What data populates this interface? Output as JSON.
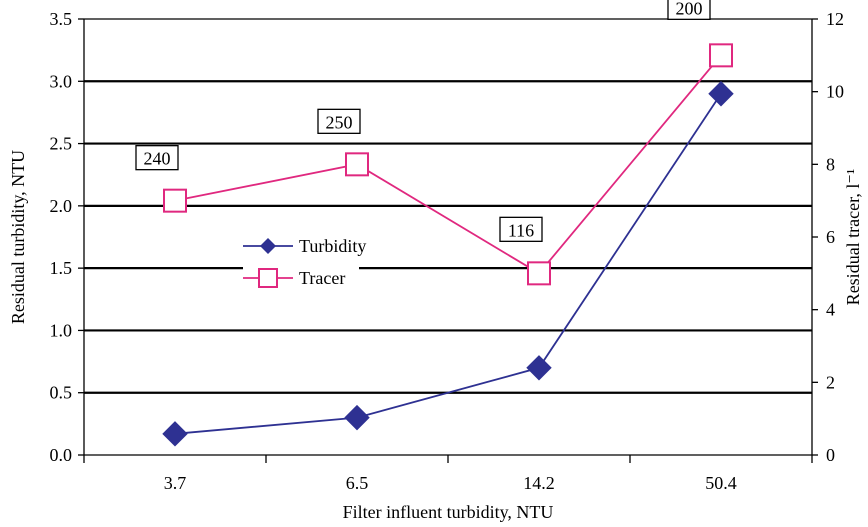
{
  "chart_data": {
    "type": "line",
    "categories": [
      "3.7",
      "6.5",
      "14.2",
      "50.4"
    ],
    "xlabel": "Filter influent turbidity, NTU",
    "ylabel": "Residual turbidity, NTU",
    "y2label": "Residual tracer, l⁻¹",
    "ylim": [
      0,
      3.5
    ],
    "y2lim": [
      0,
      12
    ],
    "yticks": [
      "0.0",
      "0.5",
      "1.0",
      "1.5",
      "2.0",
      "2.5",
      "3.0",
      "3.5"
    ],
    "y2ticks": [
      "0",
      "2",
      "4",
      "6",
      "8",
      "10",
      "12"
    ],
    "grid": true,
    "legend_position": "center-left",
    "series": [
      {
        "name": "Turbidity",
        "axis": "left",
        "values": [
          0.17,
          0.3,
          0.7,
          2.9
        ],
        "color": "#2E3192",
        "marker": "diamond-filled"
      },
      {
        "name": "Tracer",
        "axis": "right",
        "values": [
          7,
          8,
          5,
          11
        ],
        "color": "#E0287F",
        "marker": "square-open"
      }
    ],
    "annotations": [
      "240",
      "250",
      "116",
      "200"
    ]
  }
}
